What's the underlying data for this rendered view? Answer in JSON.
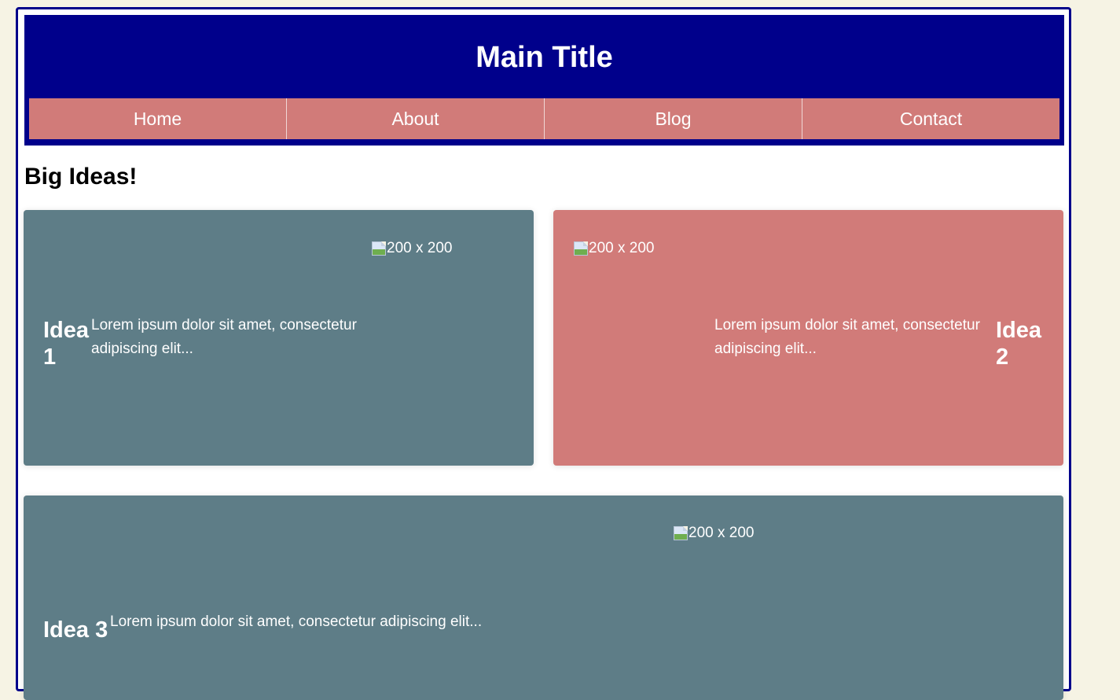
{
  "header": {
    "title": "Main Title",
    "nav": [
      "Home",
      "About",
      "Blog",
      "Contact"
    ]
  },
  "section": {
    "heading": "Big Ideas!"
  },
  "cards": [
    {
      "title": "Idea 1",
      "title_lines": [
        "Idea",
        "1"
      ],
      "text": "Lorem ipsum dolor sit amet, consectetur adipiscing elit...",
      "image_alt": "200 x 200",
      "color": "#5e7d87"
    },
    {
      "title": "Idea 2",
      "title_lines": [
        "Idea",
        "2"
      ],
      "text": "Lorem ipsum dolor sit amet, consectetur adipiscing elit...",
      "image_alt": "200 x 200",
      "color": "#d17b79"
    },
    {
      "title": "Idea 3",
      "text": "Lorem ipsum dolor sit amet, consectetur adipiscing elit...",
      "image_alt": "200 x 200",
      "color": "#5e7d87"
    }
  ],
  "colors": {
    "page_background": "#f6f3e4",
    "header_background": "#00008b",
    "border": "#00008b",
    "nav_background": "#d17b79"
  },
  "icons": {
    "broken_image": "broken-image-icon"
  }
}
